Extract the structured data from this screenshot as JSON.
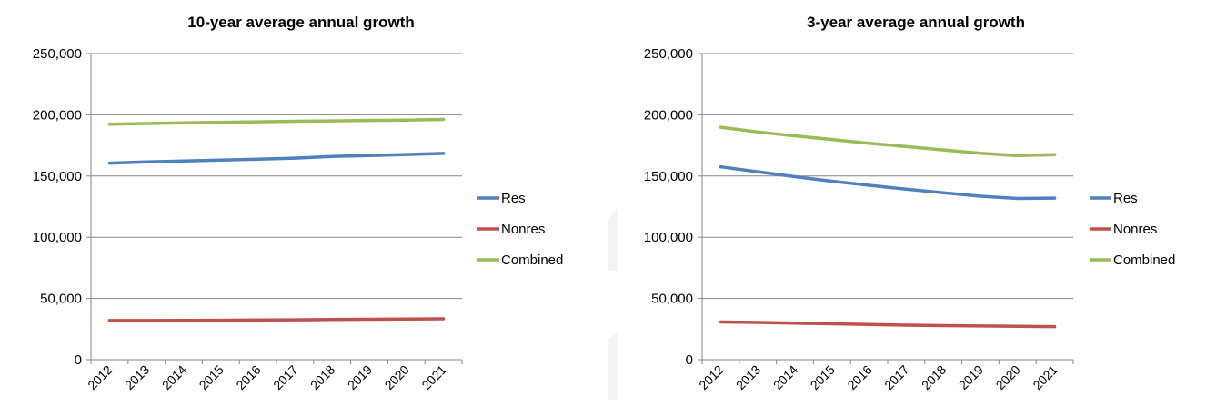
{
  "chart_data": [
    {
      "type": "line",
      "title": "10-year average annual growth",
      "xlabel": "",
      "ylabel": "",
      "categories": [
        "2012",
        "2013",
        "2014",
        "2015",
        "2016",
        "2017",
        "2018",
        "2019",
        "2020",
        "2021"
      ],
      "ylim": [
        0,
        250000
      ],
      "yticks": [
        "0",
        "50,000",
        "100,000",
        "150,000",
        "200,000",
        "250,000"
      ],
      "grid": true,
      "legend_position": "right",
      "series": [
        {
          "name": "Res",
          "color": "#4f81bd",
          "values": [
            160500,
            161500,
            162300,
            163000,
            163800,
            164600,
            166000,
            166800,
            167600,
            168500
          ]
        },
        {
          "name": "Nonres",
          "color": "#c0504d",
          "values": [
            32000,
            32000,
            32100,
            32200,
            32400,
            32600,
            32800,
            33000,
            33200,
            33400
          ]
        },
        {
          "name": "Combined",
          "color": "#9bbb59",
          "values": [
            192300,
            192900,
            193400,
            193900,
            194300,
            194700,
            195000,
            195400,
            195700,
            196200
          ]
        }
      ]
    },
    {
      "type": "line",
      "title": "3-year average annual growth",
      "xlabel": "",
      "ylabel": "",
      "categories": [
        "2012",
        "2013",
        "2014",
        "2015",
        "2016",
        "2017",
        "2018",
        "2019",
        "2020",
        "2021"
      ],
      "ylim": [
        0,
        250000
      ],
      "yticks": [
        "0",
        "50,000",
        "100,000",
        "150,000",
        "200,000",
        "250,000"
      ],
      "grid": true,
      "legend_position": "right",
      "series": [
        {
          "name": "Res",
          "color": "#4f81bd",
          "values": [
            157500,
            153500,
            149500,
            145800,
            142400,
            139300,
            136300,
            133500,
            131700,
            132000
          ]
        },
        {
          "name": "Nonres",
          "color": "#c0504d",
          "values": [
            30800,
            30400,
            29800,
            29300,
            28700,
            28200,
            27800,
            27500,
            27200,
            27000
          ]
        },
        {
          "name": "Combined",
          "color": "#9bbb59",
          "values": [
            189800,
            186000,
            182800,
            179800,
            176800,
            174000,
            171300,
            168600,
            166600,
            167500
          ]
        }
      ]
    }
  ]
}
